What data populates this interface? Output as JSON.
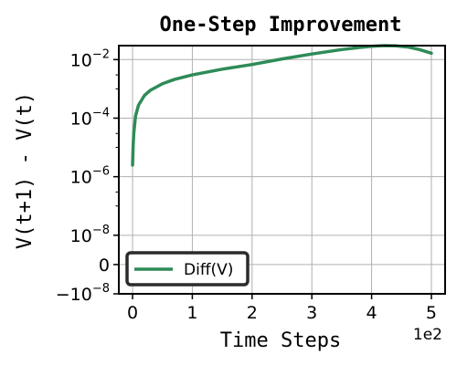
{
  "chart_data": {
    "type": "line",
    "title": "One-Step Improvement",
    "xlabel": "Time Steps",
    "ylabel": "V(t+1) - V(t)",
    "x_offset_label": "1e2",
    "xlim": [
      -0.23,
      5.23
    ],
    "x_ticks": [
      {
        "value": 0,
        "label": "0"
      },
      {
        "value": 1,
        "label": "1"
      },
      {
        "value": 2,
        "label": "2"
      },
      {
        "value": 3,
        "label": "3"
      },
      {
        "value": 4,
        "label": "4"
      },
      {
        "value": 5,
        "label": "5"
      }
    ],
    "y_scale": "symlog",
    "y_linthresh": 1e-08,
    "ylim": [
      -1e-08,
      0.03
    ],
    "y_ticks": [
      {
        "value": -1e-08,
        "base": "−10",
        "exp": "−8"
      },
      {
        "value": 0,
        "base": "0",
        "exp": ""
      },
      {
        "value": 1e-08,
        "base": "10",
        "exp": "−8"
      },
      {
        "value": 1e-06,
        "base": "10",
        "exp": "−6"
      },
      {
        "value": 0.0001,
        "base": "10",
        "exp": "−4"
      },
      {
        "value": 0.01,
        "base": "10",
        "exp": "−2"
      }
    ],
    "grid": true,
    "legend": {
      "placement": "lower-left",
      "entries": [
        "Diff(V)"
      ]
    },
    "series": [
      {
        "name": "Diff(V)",
        "color": "#2e8b57",
        "x": [
          0.0,
          0.01,
          0.02,
          0.05,
          0.1,
          0.2,
          0.3,
          0.5,
          0.7,
          1.0,
          1.5,
          2.0,
          2.5,
          3.0,
          3.5,
          3.8,
          4.0,
          4.2,
          4.4,
          4.6,
          4.8,
          5.0
        ],
        "y": [
          2.5e-06,
          1.2e-05,
          3e-05,
          0.00012,
          0.00028,
          0.0006,
          0.0009,
          0.0015,
          0.0021,
          0.003,
          0.0047,
          0.0068,
          0.0105,
          0.0155,
          0.022,
          0.026,
          0.0285,
          0.03,
          0.0295,
          0.027,
          0.022,
          0.0165
        ]
      }
    ]
  }
}
